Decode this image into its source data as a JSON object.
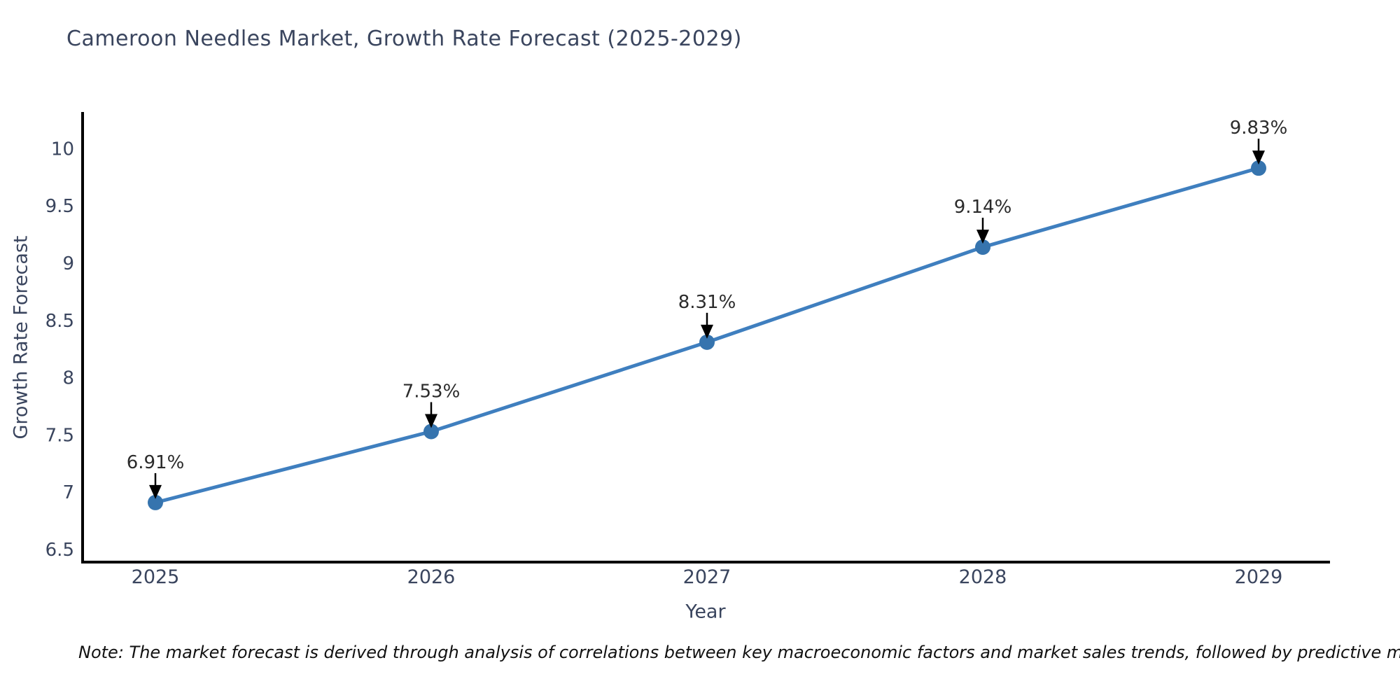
{
  "page": {
    "title": "Cameroon Needles Market, Growth Rate Forecast (2025-2029)",
    "note": "Note: The market forecast is derived through analysis of correlations between key macroeconomic factors and market sales trends, followed by predictive modeling to project future sales"
  },
  "chart_data": {
    "type": "line",
    "title": "Cameroon Needles Market, Growth Rate Forecast (2025-2029)",
    "xlabel": "Year",
    "ylabel": "Growth Rate Forecast",
    "categories": [
      "2025",
      "2026",
      "2027",
      "2028",
      "2029"
    ],
    "series": [
      {
        "name": "Growth Rate Forecast",
        "values": [
          6.91,
          7.53,
          8.31,
          9.14,
          9.83
        ]
      }
    ],
    "point_labels": [
      "6.91%",
      "7.53%",
      "8.31%",
      "9.14%",
      "9.83%"
    ],
    "y_ticks": [
      6.5,
      7,
      7.5,
      8,
      8.5,
      9,
      9.5,
      10
    ],
    "ylim": [
      6.39,
      10.32
    ],
    "grid": false,
    "legend": "none",
    "annotation_style": "down-arrow",
    "colors": {
      "line": "#3f7fbf",
      "marker": "#3674ae",
      "axis": "#000000",
      "tick_text": "#3a455e",
      "annotation_text": "#2b2b2b"
    }
  }
}
